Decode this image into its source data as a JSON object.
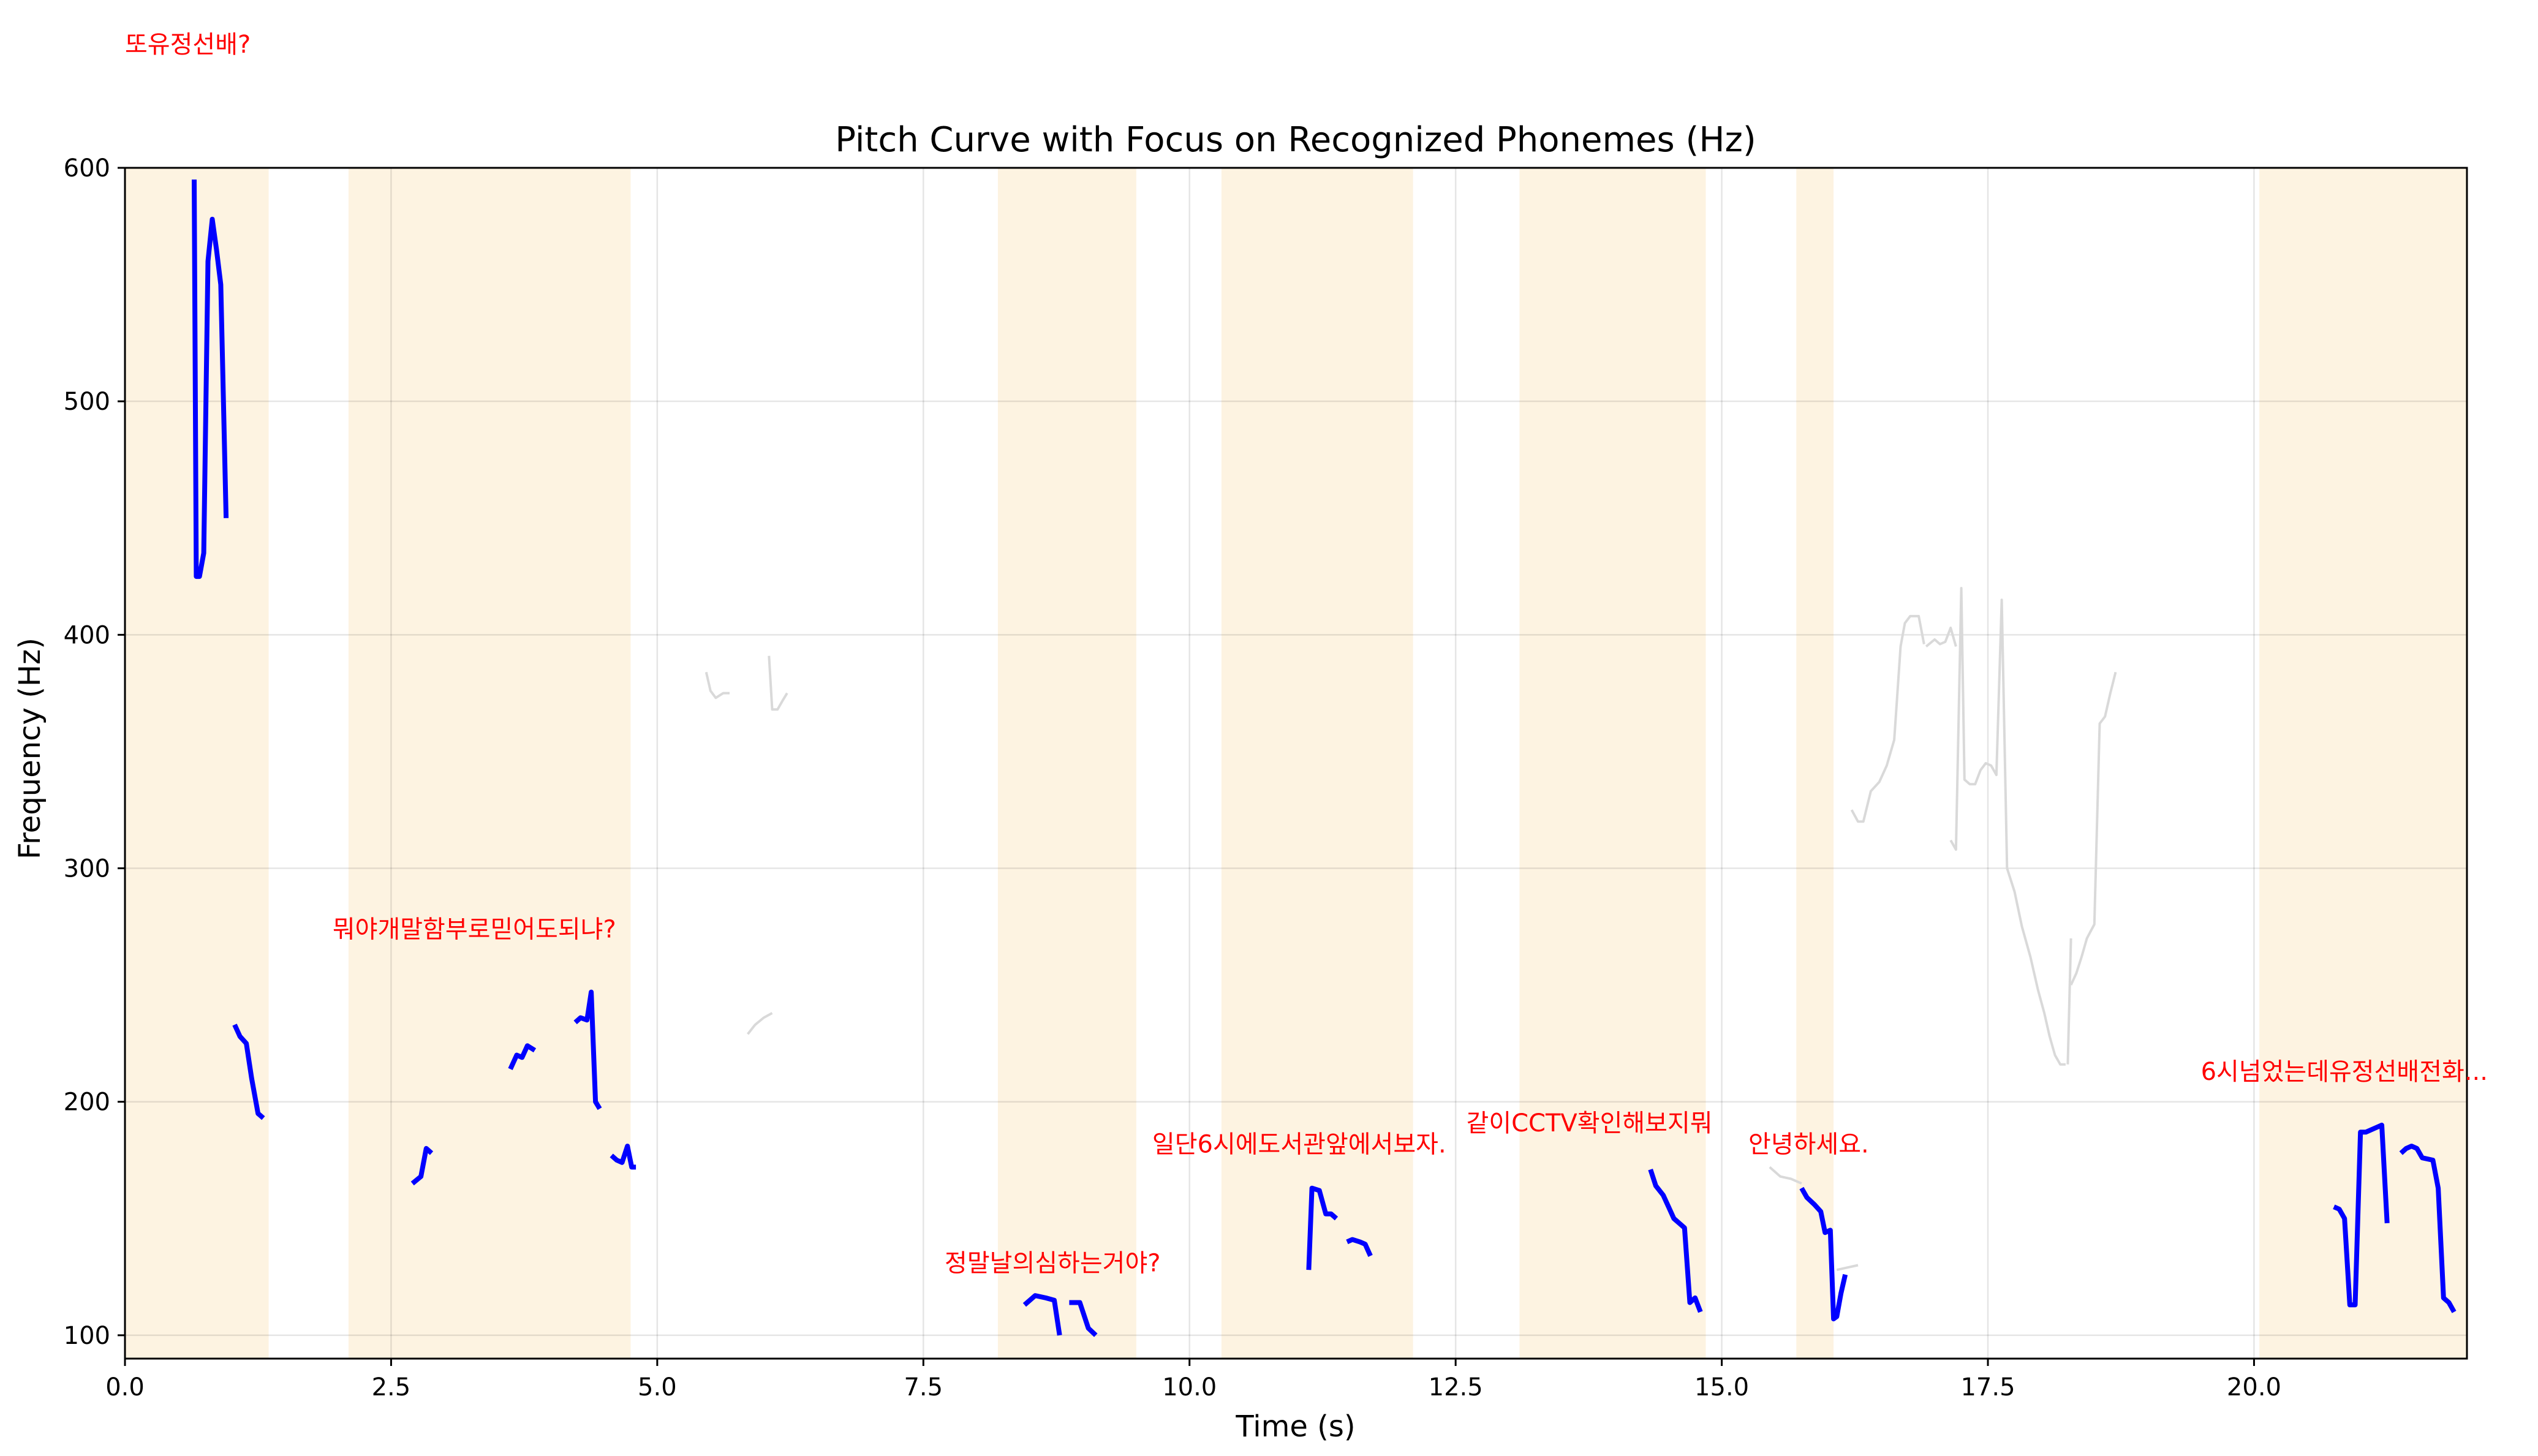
{
  "chart_data": {
    "type": "line",
    "title": "Pitch Curve with Focus on Recognized Phonemes (Hz)",
    "xlabel": "Time (s)",
    "ylabel": "Frequency (Hz)",
    "xlim": [
      0,
      22.0
    ],
    "ylim": [
      90,
      600
    ],
    "x_ticks": [
      "0.0",
      "2.5",
      "5.0",
      "7.5",
      "10.0",
      "12.5",
      "15.0",
      "17.5",
      "20.0"
    ],
    "x_tick_values": [
      0,
      2.5,
      5,
      7.5,
      10,
      12.5,
      15,
      17.5,
      20
    ],
    "y_ticks": [
      "100",
      "200",
      "300",
      "400",
      "500",
      "600"
    ],
    "y_tick_values": [
      100,
      200,
      300,
      400,
      500,
      600
    ],
    "grid": true,
    "colors": {
      "focus_curve": "#0000ff",
      "background_curve": "#d9d9d9",
      "segment_fill": "#fdf3e1",
      "annotation": "#ff0000"
    },
    "segments": [
      {
        "start": 0.0,
        "end": 1.35
      },
      {
        "start": 2.1,
        "end": 4.75
      },
      {
        "start": 8.2,
        "end": 9.5
      },
      {
        "start": 10.3,
        "end": 12.1
      },
      {
        "start": 13.1,
        "end": 14.85
      },
      {
        "start": 15.7,
        "end": 16.05
      },
      {
        "start": 20.05,
        "end": 22.0
      }
    ],
    "annotations": [
      {
        "text": "또유정선배?",
        "x": 0.0,
        "y": 653
      },
      {
        "text": "뭐야개말함부로믿어도되냐?",
        "x": 1.95,
        "y": 274
      },
      {
        "text": "정말날의심하는거야?",
        "x": 7.7,
        "y": 131
      },
      {
        "text": "일단6시에도서관앞에서보자.",
        "x": 9.65,
        "y": 182
      },
      {
        "text": "같이CCTV확인해보지뭐",
        "x": 12.6,
        "y": 191
      },
      {
        "text": "안녕하세요.",
        "x": 15.25,
        "y": 182
      },
      {
        "text": "6시넘었는데유정선배전화...",
        "x": 19.5,
        "y": 213
      }
    ],
    "focus_series": [
      {
        "x": [
          0.65,
          0.67,
          0.7,
          0.74,
          0.78,
          0.82,
          0.86,
          0.9,
          0.95
        ],
        "y": [
          595,
          425,
          425,
          435,
          560,
          578,
          565,
          550,
          450
        ]
      },
      {
        "x": [
          1.03,
          1.08,
          1.14,
          1.19,
          1.25,
          1.3
        ],
        "y": [
          233,
          228,
          225,
          210,
          195,
          193
        ]
      },
      {
        "x": [
          2.7,
          2.78,
          2.83,
          2.88
        ],
        "y": [
          165,
          168,
          180,
          178
        ]
      },
      {
        "x": [
          3.62,
          3.68,
          3.73,
          3.78,
          3.85
        ],
        "y": [
          214,
          220,
          219,
          224,
          222
        ]
      },
      {
        "x": [
          4.23,
          4.28,
          4.34,
          4.38,
          4.42,
          4.46
        ],
        "y": [
          234,
          236,
          235,
          247,
          200,
          197
        ]
      },
      {
        "x": [
          4.57,
          4.62,
          4.67,
          4.72,
          4.76,
          4.8
        ],
        "y": [
          177,
          175,
          174,
          181,
          172,
          172
        ]
      },
      {
        "x": [
          8.45,
          8.55,
          8.65,
          8.73,
          8.78
        ],
        "y": [
          113,
          117,
          116,
          115,
          100
        ]
      },
      {
        "x": [
          8.87,
          8.97,
          9.05,
          9.12
        ],
        "y": [
          114,
          114,
          103,
          100
        ]
      },
      {
        "x": [
          11.12,
          11.15,
          11.22,
          11.28,
          11.33,
          11.38
        ],
        "y": [
          128,
          163,
          162,
          152,
          152,
          150
        ]
      },
      {
        "x": [
          11.48,
          11.53,
          11.6,
          11.65,
          11.7
        ],
        "y": [
          140,
          141,
          140,
          139,
          134
        ]
      },
      {
        "x": [
          14.33,
          14.38,
          14.45,
          14.5,
          14.55,
          14.6,
          14.65,
          14.7,
          14.75,
          14.8
        ],
        "y": [
          171,
          164,
          160,
          155,
          150,
          148,
          146,
          114,
          116,
          110
        ]
      },
      {
        "x": [
          15.75,
          15.8,
          15.87,
          15.93,
          15.97,
          16.02,
          16.05,
          16.08,
          16.12,
          16.16
        ],
        "y": [
          163,
          159,
          156,
          153,
          144,
          145,
          107,
          108,
          118,
          126
        ]
      },
      {
        "x": [
          20.75,
          20.8,
          20.85,
          20.9,
          20.95,
          21.0,
          21.05,
          21.15,
          21.2,
          21.25
        ],
        "y": [
          155,
          154,
          150,
          113,
          113,
          187,
          187,
          189,
          190,
          148
        ]
      },
      {
        "x": [
          21.38,
          21.43,
          21.48,
          21.53,
          21.58,
          21.68,
          21.73,
          21.78,
          21.83,
          21.88
        ],
        "y": [
          178,
          180,
          181,
          180,
          176,
          175,
          163,
          116,
          114,
          110
        ]
      }
    ],
    "background_series": [
      {
        "x": [
          5.46,
          5.5,
          5.55,
          5.62,
          5.68
        ],
        "y": [
          384,
          376,
          373,
          375,
          375
        ]
      },
      {
        "x": [
          6.05,
          6.08,
          6.13,
          6.18,
          6.22
        ],
        "y": [
          391,
          368,
          368,
          372,
          375
        ]
      },
      {
        "x": [
          5.85,
          5.92,
          6.0,
          6.08
        ],
        "y": [
          229,
          233,
          236,
          238
        ]
      },
      {
        "x": [
          15.45,
          15.55,
          15.65,
          15.75
        ],
        "y": [
          172,
          168,
          167,
          165
        ]
      },
      {
        "x": [
          16.08,
          16.18,
          16.28
        ],
        "y": [
          128,
          129,
          130
        ]
      },
      {
        "x": [
          16.22,
          16.28,
          16.33,
          16.4,
          16.48,
          16.55,
          16.62,
          16.68,
          16.72,
          16.77,
          16.85,
          16.9
        ],
        "y": [
          325,
          320,
          320,
          333,
          337,
          344,
          355,
          395,
          405,
          408,
          408,
          396
        ]
      },
      {
        "x": [
          16.92,
          17.0,
          17.05,
          17.1,
          17.15,
          17.2
        ],
        "y": [
          395,
          398,
          396,
          397,
          403,
          395
        ]
      },
      {
        "x": [
          17.15,
          17.2,
          17.25,
          17.28,
          17.33,
          17.38,
          17.43,
          17.48,
          17.53,
          17.58,
          17.63,
          17.68
        ],
        "y": [
          312,
          308,
          420,
          338,
          336,
          336,
          342,
          345,
          344,
          340,
          415,
          300
        ]
      },
      {
        "x": [
          17.68,
          17.75,
          17.82,
          17.9,
          17.97,
          18.03,
          18.08,
          18.13,
          18.18,
          18.23
        ],
        "y": [
          300,
          290,
          275,
          262,
          248,
          238,
          228,
          220,
          216,
          216
        ]
      },
      {
        "x": [
          18.25,
          18.28
        ],
        "y": [
          216,
          270
        ]
      },
      {
        "x": [
          18.28,
          18.33,
          18.38,
          18.43,
          18.5,
          18.55,
          18.6,
          18.65,
          18.7
        ],
        "y": [
          250,
          255,
          262,
          270,
          276,
          362,
          365,
          375,
          384
        ]
      }
    ]
  }
}
